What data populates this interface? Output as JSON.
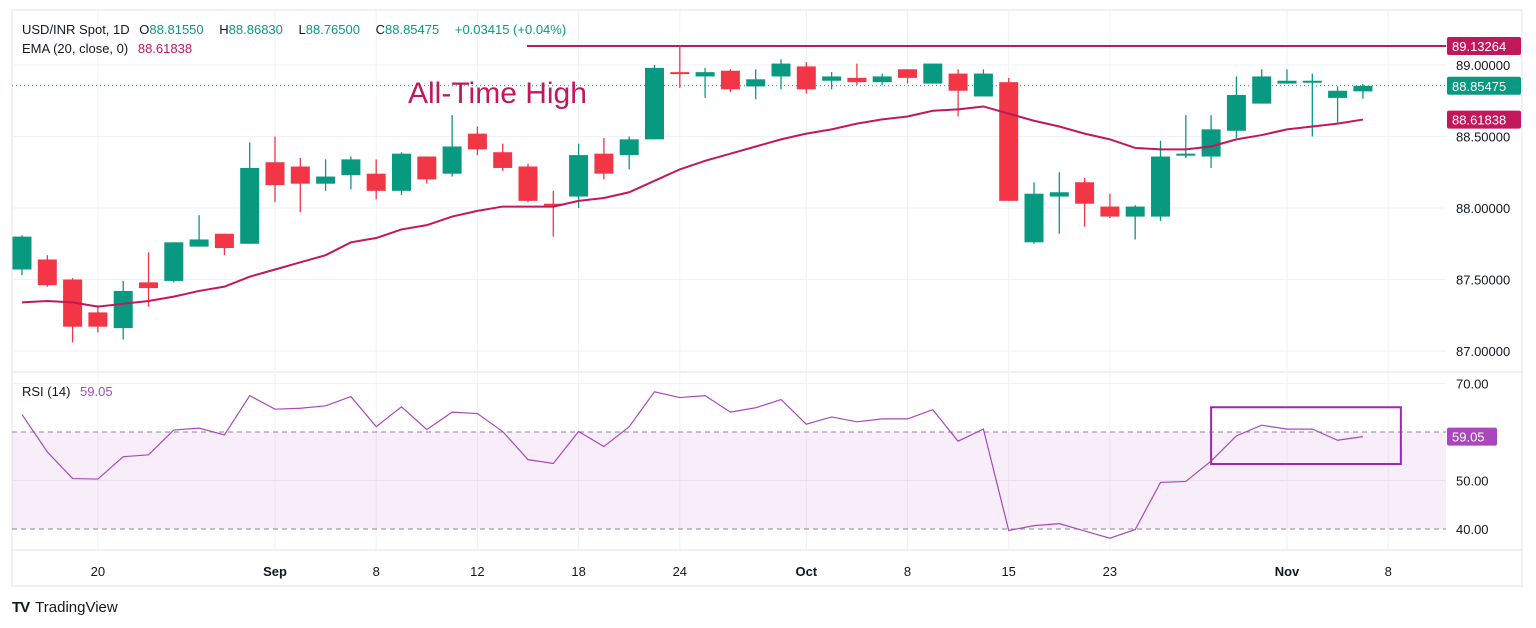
{
  "header": {
    "symbol": "USD/INR Spot, 1D",
    "open_label": "O",
    "open": "88.81550",
    "high_label": "H",
    "high": "88.86830",
    "low_label": "L",
    "low": "88.76500",
    "close_label": "C",
    "close": "88.85475",
    "change": "+0.03415 (+0.04%)",
    "ema_label": "EMA (20, close, 0)",
    "ema_value": "88.61838",
    "rsi_label": "RSI (14)",
    "rsi_value": "59.05"
  },
  "branding": {
    "logo_text": "TradingView"
  },
  "colors": {
    "up": "#089981",
    "down": "#f23645",
    "ema": "#c2185b",
    "rsi": "#ab47bc",
    "box": "#9c27b0",
    "ath": "#c2185b"
  },
  "chart_data": [
    {
      "type": "candlestick",
      "title": "USD/INR Spot, 1D",
      "x_tick_labels": [
        {
          "index": 3,
          "label": "20"
        },
        {
          "index": 10,
          "label": "Sep",
          "bold": true
        },
        {
          "index": 14,
          "label": "8"
        },
        {
          "index": 18,
          "label": "12"
        },
        {
          "index": 22,
          "label": "18"
        },
        {
          "index": 26,
          "label": "24"
        },
        {
          "index": 31,
          "label": "Oct",
          "bold": true
        },
        {
          "index": 35,
          "label": "8"
        },
        {
          "index": 39,
          "label": "15"
        },
        {
          "index": 43,
          "label": "23"
        },
        {
          "index": 50,
          "label": "Nov",
          "bold": true
        },
        {
          "index": 54,
          "label": "8"
        }
      ],
      "y_ticks": [
        "87.00000",
        "87.50000",
        "88.00000",
        "88.50000",
        "89.00000"
      ],
      "ylim": [
        86.98,
        89.37
      ],
      "grid": true,
      "ohlc": [
        [
          87.57,
          87.81,
          87.53,
          87.8
        ],
        [
          87.64,
          87.67,
          87.45,
          87.46
        ],
        [
          87.5,
          87.51,
          87.06,
          87.17
        ],
        [
          87.27,
          87.32,
          87.13,
          87.17
        ],
        [
          87.16,
          87.49,
          87.08,
          87.42
        ],
        [
          87.48,
          87.69,
          87.31,
          87.44
        ],
        [
          87.49,
          87.76,
          87.48,
          87.76
        ],
        [
          87.73,
          87.95,
          87.73,
          87.78
        ],
        [
          87.82,
          87.82,
          87.67,
          87.72
        ],
        [
          87.75,
          88.46,
          87.75,
          88.28
        ],
        [
          88.32,
          88.5,
          88.04,
          88.16
        ],
        [
          88.29,
          88.35,
          87.97,
          88.17
        ],
        [
          88.17,
          88.34,
          88.12,
          88.22
        ],
        [
          88.23,
          88.36,
          88.13,
          88.34
        ],
        [
          88.24,
          88.34,
          88.06,
          88.12
        ],
        [
          88.12,
          88.39,
          88.09,
          88.38
        ],
        [
          88.36,
          88.36,
          88.17,
          88.2
        ],
        [
          88.24,
          88.65,
          88.22,
          88.43
        ],
        [
          88.52,
          88.57,
          88.37,
          88.41
        ],
        [
          88.39,
          88.45,
          88.26,
          88.28
        ],
        [
          88.29,
          88.31,
          88.04,
          88.05
        ],
        [
          88.03,
          88.12,
          87.8,
          88.02
        ],
        [
          88.08,
          88.45,
          88.0,
          88.37
        ],
        [
          88.38,
          88.49,
          88.2,
          88.24
        ],
        [
          88.37,
          88.5,
          88.27,
          88.48
        ],
        [
          88.48,
          89.0,
          88.48,
          88.98
        ],
        [
          88.95,
          89.13,
          88.84,
          88.94
        ],
        [
          88.92,
          88.98,
          88.77,
          88.95
        ],
        [
          88.96,
          88.97,
          88.81,
          88.83
        ],
        [
          88.85,
          88.97,
          88.76,
          88.9
        ],
        [
          88.92,
          89.04,
          88.83,
          89.01
        ],
        [
          88.99,
          89.02,
          88.8,
          88.83
        ],
        [
          88.89,
          88.95,
          88.83,
          88.92
        ],
        [
          88.91,
          89.01,
          88.86,
          88.88
        ],
        [
          88.88,
          88.94,
          88.86,
          88.92
        ],
        [
          88.97,
          88.97,
          88.87,
          88.91
        ],
        [
          88.87,
          89.01,
          88.87,
          89.01
        ],
        [
          88.94,
          88.97,
          88.64,
          88.82
        ],
        [
          88.78,
          88.97,
          88.78,
          88.94
        ],
        [
          88.88,
          88.91,
          88.05,
          88.05
        ],
        [
          87.76,
          88.18,
          87.75,
          88.1
        ],
        [
          88.08,
          88.25,
          87.82,
          88.11
        ],
        [
          88.18,
          88.21,
          87.87,
          88.03
        ],
        [
          88.01,
          88.1,
          87.93,
          87.94
        ],
        [
          87.94,
          88.02,
          87.78,
          88.01
        ],
        [
          87.94,
          88.47,
          87.91,
          88.36
        ],
        [
          88.37,
          88.65,
          88.35,
          88.38
        ],
        [
          88.36,
          88.65,
          88.28,
          88.55
        ],
        [
          88.54,
          88.92,
          88.49,
          88.79
        ],
        [
          88.73,
          88.97,
          88.73,
          88.92
        ],
        [
          88.87,
          88.97,
          88.87,
          88.89
        ],
        [
          88.88,
          88.94,
          88.5,
          88.89
        ],
        [
          88.77,
          88.85,
          88.59,
          88.82
        ],
        [
          88.8155,
          88.8683,
          88.765,
          88.85475
        ]
      ],
      "ema20": [
        87.34,
        87.35,
        87.34,
        87.31,
        87.33,
        87.35,
        87.38,
        87.42,
        87.45,
        87.52,
        87.57,
        87.62,
        87.67,
        87.76,
        87.79,
        87.85,
        87.88,
        87.94,
        87.98,
        88.01,
        88.01,
        88.01,
        88.05,
        88.07,
        88.11,
        88.19,
        88.27,
        88.33,
        88.38,
        88.43,
        88.48,
        88.52,
        88.55,
        88.59,
        88.62,
        88.64,
        88.68,
        88.69,
        88.71,
        88.66,
        88.61,
        88.57,
        88.52,
        88.48,
        88.42,
        88.41,
        88.41,
        88.43,
        88.48,
        88.51,
        88.55,
        88.57,
        88.59,
        88.61838
      ],
      "last_price_label": "88.85475",
      "ema_label_value": "88.61838",
      "ath_line": {
        "value": 89.13264,
        "label": "89.13264",
        "from_index": 20
      },
      "annotation": {
        "text": "All-Time High"
      }
    },
    {
      "type": "line",
      "title": "RSI (14)",
      "y_ticks": [
        "40.00",
        "50.00",
        "70.00"
      ],
      "bands": [
        40,
        60
      ],
      "ylim": [
        36,
        72
      ],
      "values": [
        63.6,
        55.9,
        50.4,
        50.3,
        54.9,
        55.3,
        60.4,
        60.8,
        59.4,
        67.5,
        64.7,
        64.9,
        65.4,
        67.3,
        61.1,
        65.2,
        60.5,
        64.1,
        63.8,
        60.1,
        54.3,
        53.5,
        60.1,
        57.0,
        61.1,
        68.3,
        67.1,
        67.5,
        64.1,
        65.0,
        66.7,
        61.6,
        63.1,
        62.1,
        62.7,
        62.7,
        64.6,
        58.1,
        60.6,
        39.7,
        40.7,
        41.1,
        39.6,
        38.1,
        39.9,
        49.6,
        49.8,
        54.0,
        59.2,
        61.4,
        60.6,
        60.6,
        58.3,
        59.05
      ],
      "last_label": "59.05",
      "highlight_box": {
        "from_index": 47,
        "to_index": 54.5,
        "rsi_low": 53.4,
        "rsi_high": 65.1
      }
    }
  ]
}
